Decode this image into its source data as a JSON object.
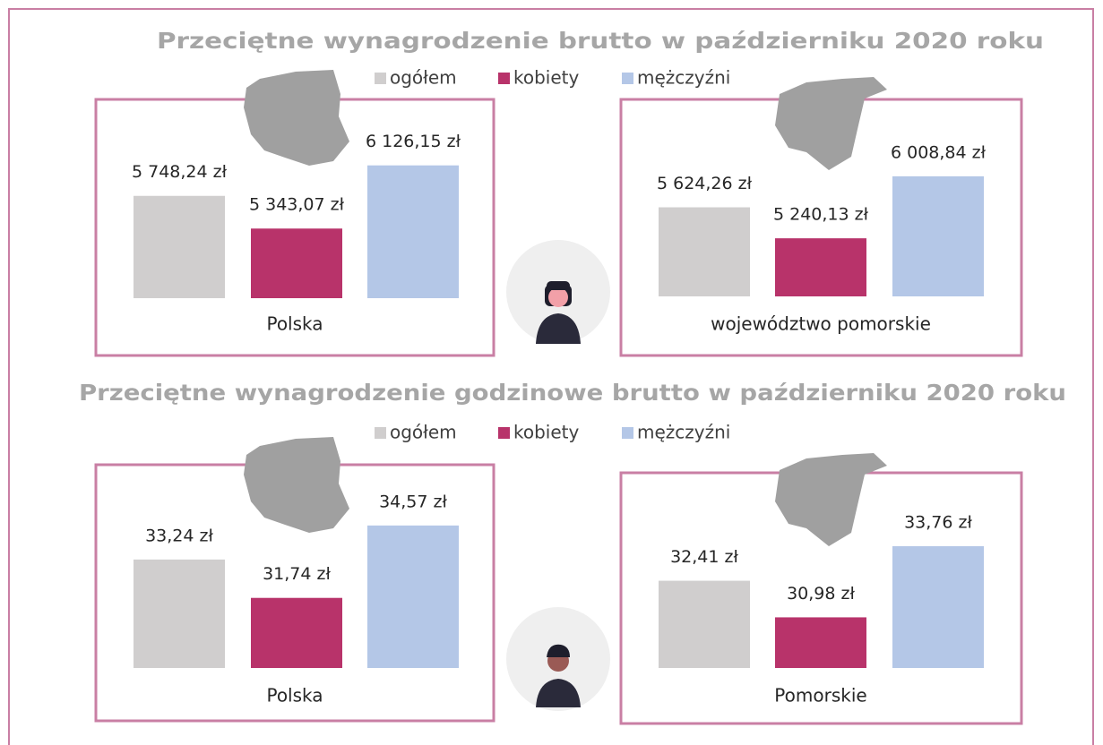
{
  "sections": [
    {
      "title": "Przeciętne wynagrodzenie brutto w październiku 2020 roku",
      "legend": [
        "ogółem",
        "kobiety",
        "mężczyźni"
      ]
    },
    {
      "title": "Przeciętne wynagrodzenie godzinowe brutto w październiku 2020 roku",
      "legend": [
        "ogółem",
        "kobiety",
        "mężczyźni"
      ]
    }
  ],
  "chart_data": [
    {
      "type": "bar",
      "label": "Polska",
      "values": [
        5748.24,
        5343.07,
        6126.15
      ],
      "value_labels": [
        "5 748,24 zł",
        "5 343,07 zł",
        "6 126,15 zł"
      ],
      "colors": [
        "#d0cece",
        "#b8336a",
        "#b4c7e7"
      ],
      "ylim": [
        4480,
        6700
      ]
    },
    {
      "type": "bar",
      "label": "województwo pomorskie",
      "values": [
        5624.26,
        5240.13,
        6008.84
      ],
      "value_labels": [
        "5 624,26 zł",
        "5 240,13 zł",
        "6 008,84 zł"
      ],
      "colors": [
        "#d0cece",
        "#b8336a",
        "#b4c7e7"
      ],
      "ylim": [
        4520,
        6740
      ]
    },
    {
      "type": "bar",
      "label": "Polska",
      "values": [
        33.24,
        31.74,
        34.57
      ],
      "value_labels": [
        "33,24 zł",
        "31,74 zł",
        "34,57 zł"
      ],
      "colors": [
        "#d0cece",
        "#b8336a",
        "#b4c7e7"
      ],
      "ylim": [
        29,
        36
      ]
    },
    {
      "type": "bar",
      "label": "Pomorskie",
      "values": [
        32.41,
        30.98,
        33.76
      ],
      "value_labels": [
        "32,41 zł",
        "30,98 zł",
        "33,76 zł"
      ],
      "colors": [
        "#d0cece",
        "#b8336a",
        "#b4c7e7"
      ],
      "ylim": [
        29,
        36
      ]
    }
  ]
}
